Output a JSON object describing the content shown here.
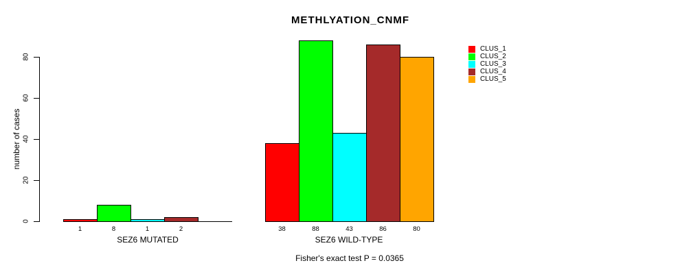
{
  "chart_data": {
    "type": "bar",
    "title": "METHLYATION_CNMF",
    "ylabel": "number of cases",
    "xlabel": "",
    "yticks": [
      0,
      20,
      40,
      60,
      80
    ],
    "ylim": [
      0,
      88
    ],
    "grid": false,
    "legend_position": "right",
    "footer": "Fisher's exact test P = 0.0365",
    "legend": [
      {
        "label": "CLUS_1",
        "color": "#FF0000"
      },
      {
        "label": "CLUS_2",
        "color": "#00FF00"
      },
      {
        "label": "CLUS_3",
        "color": "#00FFFF"
      },
      {
        "label": "CLUS_4",
        "color": "#A52A2A"
      },
      {
        "label": "CLUS_5",
        "color": "#FFA500"
      }
    ],
    "groups": [
      {
        "label": "SEZ6 MUTATED",
        "categories": [
          "CLUS_1",
          "CLUS_2",
          "CLUS_3",
          "CLUS_4",
          "CLUS_5"
        ],
        "values": [
          1,
          8,
          1,
          2,
          0
        ],
        "bar_labels": [
          "1",
          "8",
          "1",
          "2",
          ""
        ]
      },
      {
        "label": "SEZ6 WILD-TYPE",
        "categories": [
          "CLUS_1",
          "CLUS_2",
          "CLUS_3",
          "CLUS_4",
          "CLUS_5"
        ],
        "values": [
          38,
          88,
          43,
          86,
          80
        ],
        "bar_labels": [
          "38",
          "88",
          "43",
          "86",
          "80"
        ]
      }
    ],
    "axis_color": "#000000",
    "background_color": "#FFFFFF"
  }
}
